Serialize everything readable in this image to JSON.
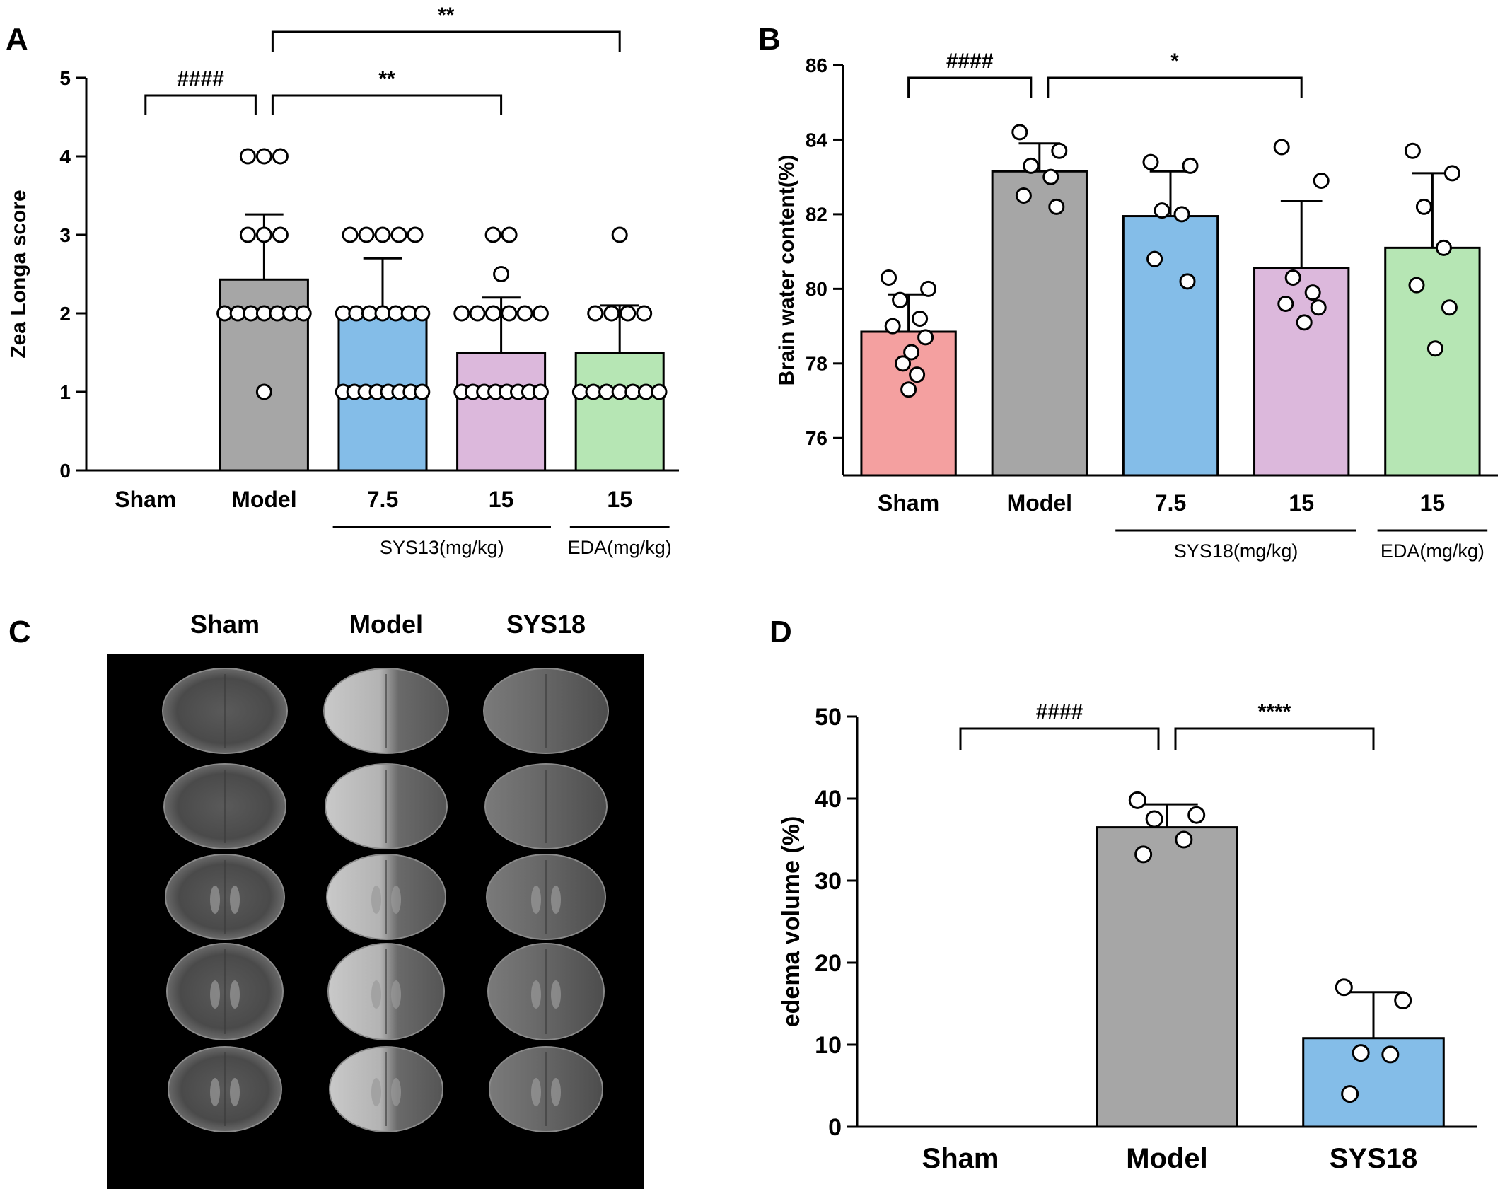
{
  "panels": {
    "A": {
      "letter": "A",
      "chart_data": {
        "type": "bar",
        "categories": [
          "Sham",
          "Model",
          "7.5",
          "15",
          "15"
        ],
        "values": [
          0,
          2.43,
          1.95,
          1.5,
          1.5
        ],
        "errors": [
          0,
          0.83,
          0.75,
          0.7,
          0.6
        ],
        "points": [
          [],
          [
            4,
            4,
            4,
            3,
            3,
            3,
            2,
            2,
            2,
            2,
            2,
            2,
            2,
            1
          ],
          [
            3,
            3,
            3,
            3,
            3,
            2,
            2,
            2,
            2,
            2,
            2,
            2,
            1,
            1,
            1,
            1,
            1,
            1,
            1,
            1
          ],
          [
            3,
            3,
            2.5,
            2,
            2,
            2,
            2,
            2,
            2,
            1,
            1,
            1,
            1,
            1,
            1,
            1,
            1
          ],
          [
            3,
            2,
            2,
            2,
            2,
            1,
            1,
            1,
            1,
            1,
            1,
            1
          ]
        ],
        "colors": [
          "#f4a0a0",
          "#a6a6a6",
          "#84bde8",
          "#dcb8dc",
          "#b6e6b4"
        ],
        "ylabel": "Zea Longa score",
        "ylim": [
          0,
          5
        ],
        "yticks": [
          0,
          1,
          2,
          3,
          4,
          5
        ],
        "groups": [
          {
            "label": "SYS13(mg/kg)",
            "from": 2,
            "to": 3
          },
          {
            "label": "EDA(mg/kg)",
            "from": 4,
            "to": 4
          }
        ],
        "significance": [
          {
            "from": 0,
            "to": 1,
            "label": "####",
            "level": 1
          },
          {
            "from": 1,
            "to": 3,
            "label": "**",
            "level": 1
          },
          {
            "from": 1,
            "to": 4,
            "label": "**",
            "level": 2
          }
        ]
      }
    },
    "B": {
      "letter": "B",
      "chart_data": {
        "type": "bar",
        "categories": [
          "Sham",
          "Model",
          "7.5",
          "15",
          "15"
        ],
        "values": [
          78.85,
          83.15,
          81.95,
          80.55,
          81.1
        ],
        "errors": [
          1.0,
          0.75,
          1.2,
          1.8,
          2.0
        ],
        "points": [
          [
            80.3,
            80.0,
            79.7,
            79.2,
            79.0,
            78.7,
            78.3,
            78.0,
            77.7,
            77.3
          ],
          [
            84.2,
            83.7,
            83.3,
            83.0,
            82.5,
            82.2
          ],
          [
            83.4,
            83.3,
            82.1,
            82.0,
            80.8,
            80.2
          ],
          [
            83.8,
            82.9,
            80.3,
            79.9,
            79.6,
            79.5,
            79.1
          ],
          [
            83.7,
            83.1,
            82.2,
            81.1,
            80.1,
            79.5,
            78.4
          ]
        ],
        "colors": [
          "#f4a0a0",
          "#a6a6a6",
          "#84bde8",
          "#dcb8dc",
          "#b6e6b4"
        ],
        "ylabel": "Brain water content(%)",
        "ylim": [
          75,
          86
        ],
        "yticks": [
          76,
          78,
          80,
          82,
          84,
          86
        ],
        "groups": [
          {
            "label": "SYS18(mg/kg)",
            "from": 2,
            "to": 3
          },
          {
            "label": "EDA(mg/kg)",
            "from": 4,
            "to": 4
          }
        ],
        "significance": [
          {
            "from": 0,
            "to": 1,
            "label": "####",
            "level": 1
          },
          {
            "from": 1,
            "to": 3,
            "label": "*",
            "level": 1
          }
        ]
      }
    },
    "C": {
      "letter": "C",
      "columns": [
        "Sham",
        "Model",
        "SYS18"
      ]
    },
    "D": {
      "letter": "D",
      "chart_data": {
        "type": "bar",
        "categories": [
          "Sham",
          "Model",
          "SYS18"
        ],
        "values": [
          0,
          36.5,
          10.8
        ],
        "errors": [
          0,
          2.8,
          5.6
        ],
        "points": [
          [],
          [
            39.8,
            38.0,
            37.5,
            35.0,
            33.2
          ],
          [
            17.0,
            15.4,
            9.0,
            8.8,
            4.0
          ]
        ],
        "colors": [
          "#f4a0a0",
          "#a6a6a6",
          "#84bde8"
        ],
        "ylabel": "edema volume (%)",
        "ylim": [
          0,
          50
        ],
        "yticks": [
          0,
          10,
          20,
          30,
          40,
          50
        ],
        "groups": [],
        "significance": [
          {
            "from": 0,
            "to": 1,
            "label": "####",
            "level": 1
          },
          {
            "from": 1,
            "to": 2,
            "label": "****",
            "level": 1
          }
        ]
      }
    }
  }
}
